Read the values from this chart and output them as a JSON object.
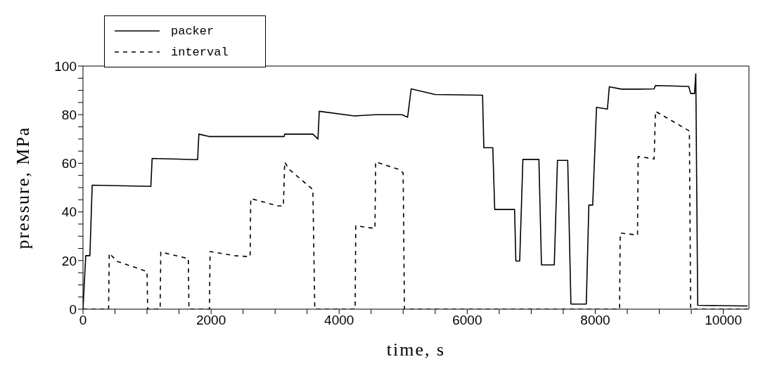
{
  "chart_data": {
    "type": "line",
    "xlabel": "time, s",
    "ylabel": "pressure, MPa",
    "xlim": [
      0,
      10400
    ],
    "ylim": [
      0,
      100
    ],
    "xticks": [
      0,
      {
        "value": 500,
        "label": null
      },
      {
        "value": 1000,
        "label": null
      },
      {
        "value": 1500,
        "label": null
      },
      2000,
      {
        "value": 2500,
        "label": null
      },
      {
        "value": 3000,
        "label": null
      },
      {
        "value": 3500,
        "label": null
      },
      4000,
      {
        "value": 4500,
        "label": null
      },
      {
        "value": 5000,
        "label": null
      },
      {
        "value": 5500,
        "label": null
      },
      6000,
      {
        "value": 6500,
        "label": null
      },
      {
        "value": 7000,
        "label": null
      },
      {
        "value": 7500,
        "label": null
      },
      8000,
      {
        "value": 8500,
        "label": null
      },
      {
        "value": 9000,
        "label": null
      },
      {
        "value": 9500,
        "label": null
      },
      10000
    ],
    "yticks": [
      0,
      {
        "value": 5,
        "label": null
      },
      {
        "value": 10,
        "label": null
      },
      {
        "value": 15,
        "label": null
      },
      20,
      {
        "value": 25,
        "label": null
      },
      {
        "value": 30,
        "label": null
      },
      {
        "value": 35,
        "label": null
      },
      40,
      {
        "value": 45,
        "label": null
      },
      {
        "value": 50,
        "label": null
      },
      {
        "value": 55,
        "label": null
      },
      60,
      {
        "value": 65,
        "label": null
      },
      {
        "value": 70,
        "label": null
      },
      {
        "value": 75,
        "label": null
      },
      80,
      {
        "value": 85,
        "label": null
      },
      {
        "value": 90,
        "label": null
      },
      {
        "value": 95,
        "label": null
      },
      100
    ],
    "legend": "top left",
    "marker": "none",
    "series": [
      {
        "name": "packer",
        "color": "#000000",
        "line_style": "solid",
        "x": [
          0,
          43,
          108,
          144,
          1060,
          1080,
          1790,
          1810,
          1970,
          2620,
          3140,
          3150,
          3590,
          3670,
          3690,
          4240,
          4560,
          4980,
          5070,
          5125,
          5500,
          6240,
          6260,
          6400,
          6430,
          6740,
          6760,
          6820,
          6870,
          7120,
          7160,
          7360,
          7410,
          7570,
          7620,
          7860,
          7900,
          7960,
          8020,
          8190,
          8220,
          8410,
          8660,
          8920,
          8940,
          9460,
          9490,
          9550,
          9570,
          9600,
          10380
        ],
        "values": [
          0,
          22,
          22,
          51,
          50.5,
          62,
          61.5,
          72,
          71,
          71,
          71,
          72,
          72,
          70,
          81.4,
          79.5,
          80,
          80,
          79,
          90.6,
          88.3,
          88,
          66.4,
          66.4,
          41,
          41,
          19.8,
          19.8,
          61.6,
          61.6,
          18.2,
          18.2,
          61.2,
          61.2,
          2.1,
          2.1,
          42.8,
          42.8,
          83,
          82.3,
          91.5,
          90.5,
          90.5,
          90.6,
          92,
          91.6,
          88.7,
          88.7,
          96.8,
          1.6,
          1.3
        ]
      },
      {
        "name": "interval",
        "color": "#000000",
        "line_style": "dashed",
        "x": [
          0,
          400,
          410,
          530,
          1000,
          1010,
          1205,
          1215,
          1645,
          1655,
          1975,
          1985,
          2370,
          2535,
          2610,
          2620,
          3040,
          3130,
          3150,
          3220,
          3590,
          3620,
          4250,
          4260,
          4560,
          4570,
          4930,
          5000,
          5020,
          8380,
          8390,
          8660,
          8670,
          8920,
          8940,
          9470,
          9490,
          10380
        ],
        "values": [
          0,
          0,
          23,
          19.7,
          15.5,
          0,
          0,
          23.5,
          20.8,
          0,
          0,
          23.7,
          22,
          21.7,
          21.7,
          45.5,
          42.5,
          42.5,
          60.5,
          57.5,
          49.2,
          0,
          0,
          34.3,
          33.2,
          60.6,
          57.5,
          56,
          0,
          0,
          31.3,
          30.5,
          62.8,
          61.8,
          81.4,
          73.3,
          0,
          0
        ]
      }
    ]
  }
}
